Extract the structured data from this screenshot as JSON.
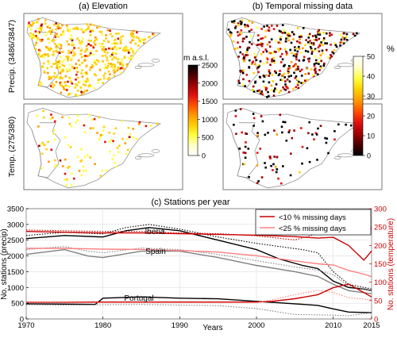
{
  "titles": {
    "a": "(a) Elevation",
    "b": "(b) Temporal missing data",
    "c": "(c) Stations per year"
  },
  "row_labels": {
    "precip": "Precip. (3486/3847)",
    "temp": "Temp. (275/380)"
  },
  "colorbars": {
    "elevation": {
      "unit": "m a.s.l.",
      "ticks": [
        "2500",
        "2000",
        "1500",
        "1000",
        "500",
        "0"
      ],
      "colors": [
        "#000000",
        "#4a0000",
        "#a00000",
        "#e01010",
        "#ff5000",
        "#ff9a00",
        "#ffd000",
        "#ffff40",
        "#ffffc8",
        "#ffffff"
      ]
    },
    "missing": {
      "unit": "%",
      "ticks": [
        "50",
        "40",
        "30",
        "20",
        "10",
        "0"
      ],
      "colors": [
        "#ffffff",
        "#ffffc8",
        "#ffff40",
        "#ffd000",
        "#ff9a00",
        "#ff5000",
        "#e01010",
        "#a00000",
        "#4a0000",
        "#000000"
      ]
    }
  },
  "map_panels": [
    {
      "id": "precip-elevation",
      "dots": [
        [
          "#ffd000",
          0.55
        ],
        [
          "#ffff40",
          0.2
        ],
        [
          "#ff9a00",
          0.15
        ],
        [
          "#e01010",
          0.07
        ],
        [
          "#a00000",
          0.03
        ]
      ],
      "count": 520
    },
    {
      "id": "precip-missing",
      "dots": [
        [
          "#000000",
          0.35
        ],
        [
          "#a00000",
          0.2
        ],
        [
          "#e01010",
          0.15
        ],
        [
          "#ff9a00",
          0.12
        ],
        [
          "#ffd000",
          0.12
        ],
        [
          "#ffff40",
          0.06
        ]
      ],
      "count": 420
    },
    {
      "id": "temp-elevation",
      "dots": [
        [
          "#ffff40",
          0.45
        ],
        [
          "#ffd000",
          0.3
        ],
        [
          "#ff9a00",
          0.15
        ],
        [
          "#e01010",
          0.07
        ],
        [
          "#a00000",
          0.03
        ]
      ],
      "count": 110
    },
    {
      "id": "temp-missing",
      "dots": [
        [
          "#000000",
          0.5
        ],
        [
          "#a00000",
          0.2
        ],
        [
          "#e01010",
          0.15
        ],
        [
          "#ff9a00",
          0.1
        ],
        [
          "#ffd000",
          0.05
        ]
      ],
      "count": 90
    }
  ],
  "chart_data": {
    "type": "line",
    "title": "(c) Stations per year",
    "xlabel": "Years",
    "ylabel": "No. stations (precip)",
    "ylabel_right": "No. stations (temperature)",
    "xlim": [
      1970,
      2015
    ],
    "ylim": [
      0,
      3500
    ],
    "ylim_right": [
      0,
      300
    ],
    "xticks": [
      1970,
      1980,
      1990,
      2000,
      2010,
      2015
    ],
    "yticks": [
      0,
      500,
      1000,
      1500,
      2000,
      2500,
      3000,
      3500
    ],
    "yticks_right": [
      0,
      50,
      100,
      150,
      200,
      250,
      300
    ],
    "annotations": [
      "Iberia",
      "Spain",
      "Portugal"
    ],
    "legend": {
      "placement": "top-right",
      "entries": [
        "<10 % missing days",
        "<25 % missing days"
      ]
    },
    "series": [
      {
        "group": "Iberia",
        "axis": "left",
        "color": "#000000",
        "style": "solid",
        "x": [
          1970,
          1975,
          1980,
          1983,
          1986,
          1990,
          1995,
          2000,
          2003,
          2006,
          2008,
          2010,
          2012,
          2014,
          2015
        ],
        "y": [
          2550,
          2650,
          2600,
          2800,
          2900,
          2800,
          2500,
          2200,
          1900,
          1700,
          1600,
          1200,
          1000,
          950,
          900
        ]
      },
      {
        "group": "Iberia",
        "axis": "left",
        "color": "#000000",
        "style": "dotted",
        "x": [
          1970,
          1975,
          1980,
          1983,
          1986,
          1990,
          1995,
          2000,
          2003,
          2006,
          2008,
          2010,
          2012,
          2014,
          2015
        ],
        "y": [
          2650,
          2750,
          2700,
          2900,
          3000,
          2850,
          2600,
          2400,
          2300,
          2200,
          2100,
          1500,
          1100,
          1000,
          950
        ]
      },
      {
        "group": "Spain",
        "axis": "left",
        "color": "#808080",
        "style": "solid",
        "x": [
          1970,
          1975,
          1978,
          1980,
          1985,
          1990,
          1995,
          2000,
          2005,
          2008,
          2010,
          2012,
          2015
        ],
        "y": [
          2050,
          2200,
          2000,
          1950,
          2150,
          2150,
          1950,
          1700,
          1500,
          1350,
          1100,
          900,
          800
        ]
      },
      {
        "group": "Spain",
        "axis": "left",
        "color": "#808080",
        "style": "dotted",
        "x": [
          1970,
          1975,
          1978,
          1980,
          1985,
          1990,
          1995,
          2000,
          2005,
          2008,
          2010,
          2012,
          2015
        ],
        "y": [
          2200,
          2300,
          2150,
          2100,
          2250,
          2200,
          2050,
          1850,
          1650,
          1550,
          1400,
          1050,
          900
        ]
      },
      {
        "group": "Portugal",
        "axis": "left",
        "color": "#000000",
        "style": "solid",
        "x": [
          1970,
          1975,
          1979,
          1980,
          1985,
          1990,
          1995,
          2000,
          2005,
          2008,
          2010,
          2012,
          2015
        ],
        "y": [
          480,
          470,
          460,
          660,
          700,
          660,
          640,
          560,
          480,
          430,
          320,
          220,
          200
        ]
      },
      {
        "group": "Portugal",
        "axis": "left",
        "color": "#808080",
        "style": "dotted",
        "x": [
          1970,
          1975,
          1980,
          1985,
          1990,
          1995,
          2000,
          2005,
          2008,
          2010,
          2012,
          2015
        ],
        "y": [
          450,
          440,
          450,
          460,
          440,
          420,
          330,
          140,
          130,
          120,
          100,
          200
        ]
      },
      {
        "group": "Temperature <10%",
        "axis": "right",
        "color": "#cc0000",
        "style": "solid",
        "x": [
          1970,
          1975,
          1980,
          1985,
          1990,
          1995,
          2000,
          2005,
          2008,
          2010,
          2012,
          2014,
          2015
        ],
        "y": [
          238,
          236,
          234,
          234,
          232,
          230,
          228,
          224,
          220,
          222,
          200,
          160,
          185
        ]
      },
      {
        "group": "Temperature <25%",
        "axis": "right",
        "color": "#ff8080",
        "style": "solid",
        "x": [
          1970,
          1975,
          1980,
          1985,
          1990,
          1995,
          2000,
          2005,
          2008,
          2010,
          2012,
          2014,
          2015
        ],
        "y": [
          192,
          192,
          190,
          189,
          186,
          182,
          172,
          158,
          150,
          147,
          132,
          122,
          115
        ]
      },
      {
        "group": "Temperature dotted",
        "axis": "right",
        "color": "#cc0000",
        "style": "dotted",
        "x": [
          1970,
          1975,
          1980,
          1985,
          1990,
          1995,
          2000,
          2005,
          2008,
          2010,
          2012,
          2014,
          2015
        ],
        "y": [
          242,
          240,
          238,
          238,
          234,
          232,
          226,
          215,
          232,
          255,
          250,
          240,
          245
        ]
      },
      {
        "group": "Temperature low",
        "axis": "right",
        "color": "#cc0000",
        "style": "solid",
        "x": [
          1970,
          1975,
          1980,
          1985,
          1990,
          1995,
          2000,
          2002,
          2005,
          2008,
          2010,
          2012,
          2015
        ],
        "y": [
          45,
          45,
          46,
          46,
          46,
          46,
          46,
          48,
          55,
          66,
          85,
          95,
          60
        ]
      },
      {
        "group": "Temperature low dotted",
        "axis": "right",
        "color": "#ff8080",
        "style": "dotted",
        "x": [
          1970,
          1975,
          1980,
          1985,
          1990,
          1995,
          2000,
          2002,
          2005,
          2008,
          2010,
          2012,
          2015
        ],
        "y": [
          44,
          44,
          44,
          44,
          44,
          44,
          44,
          52,
          66,
          78,
          72,
          58,
          52
        ]
      }
    ]
  }
}
